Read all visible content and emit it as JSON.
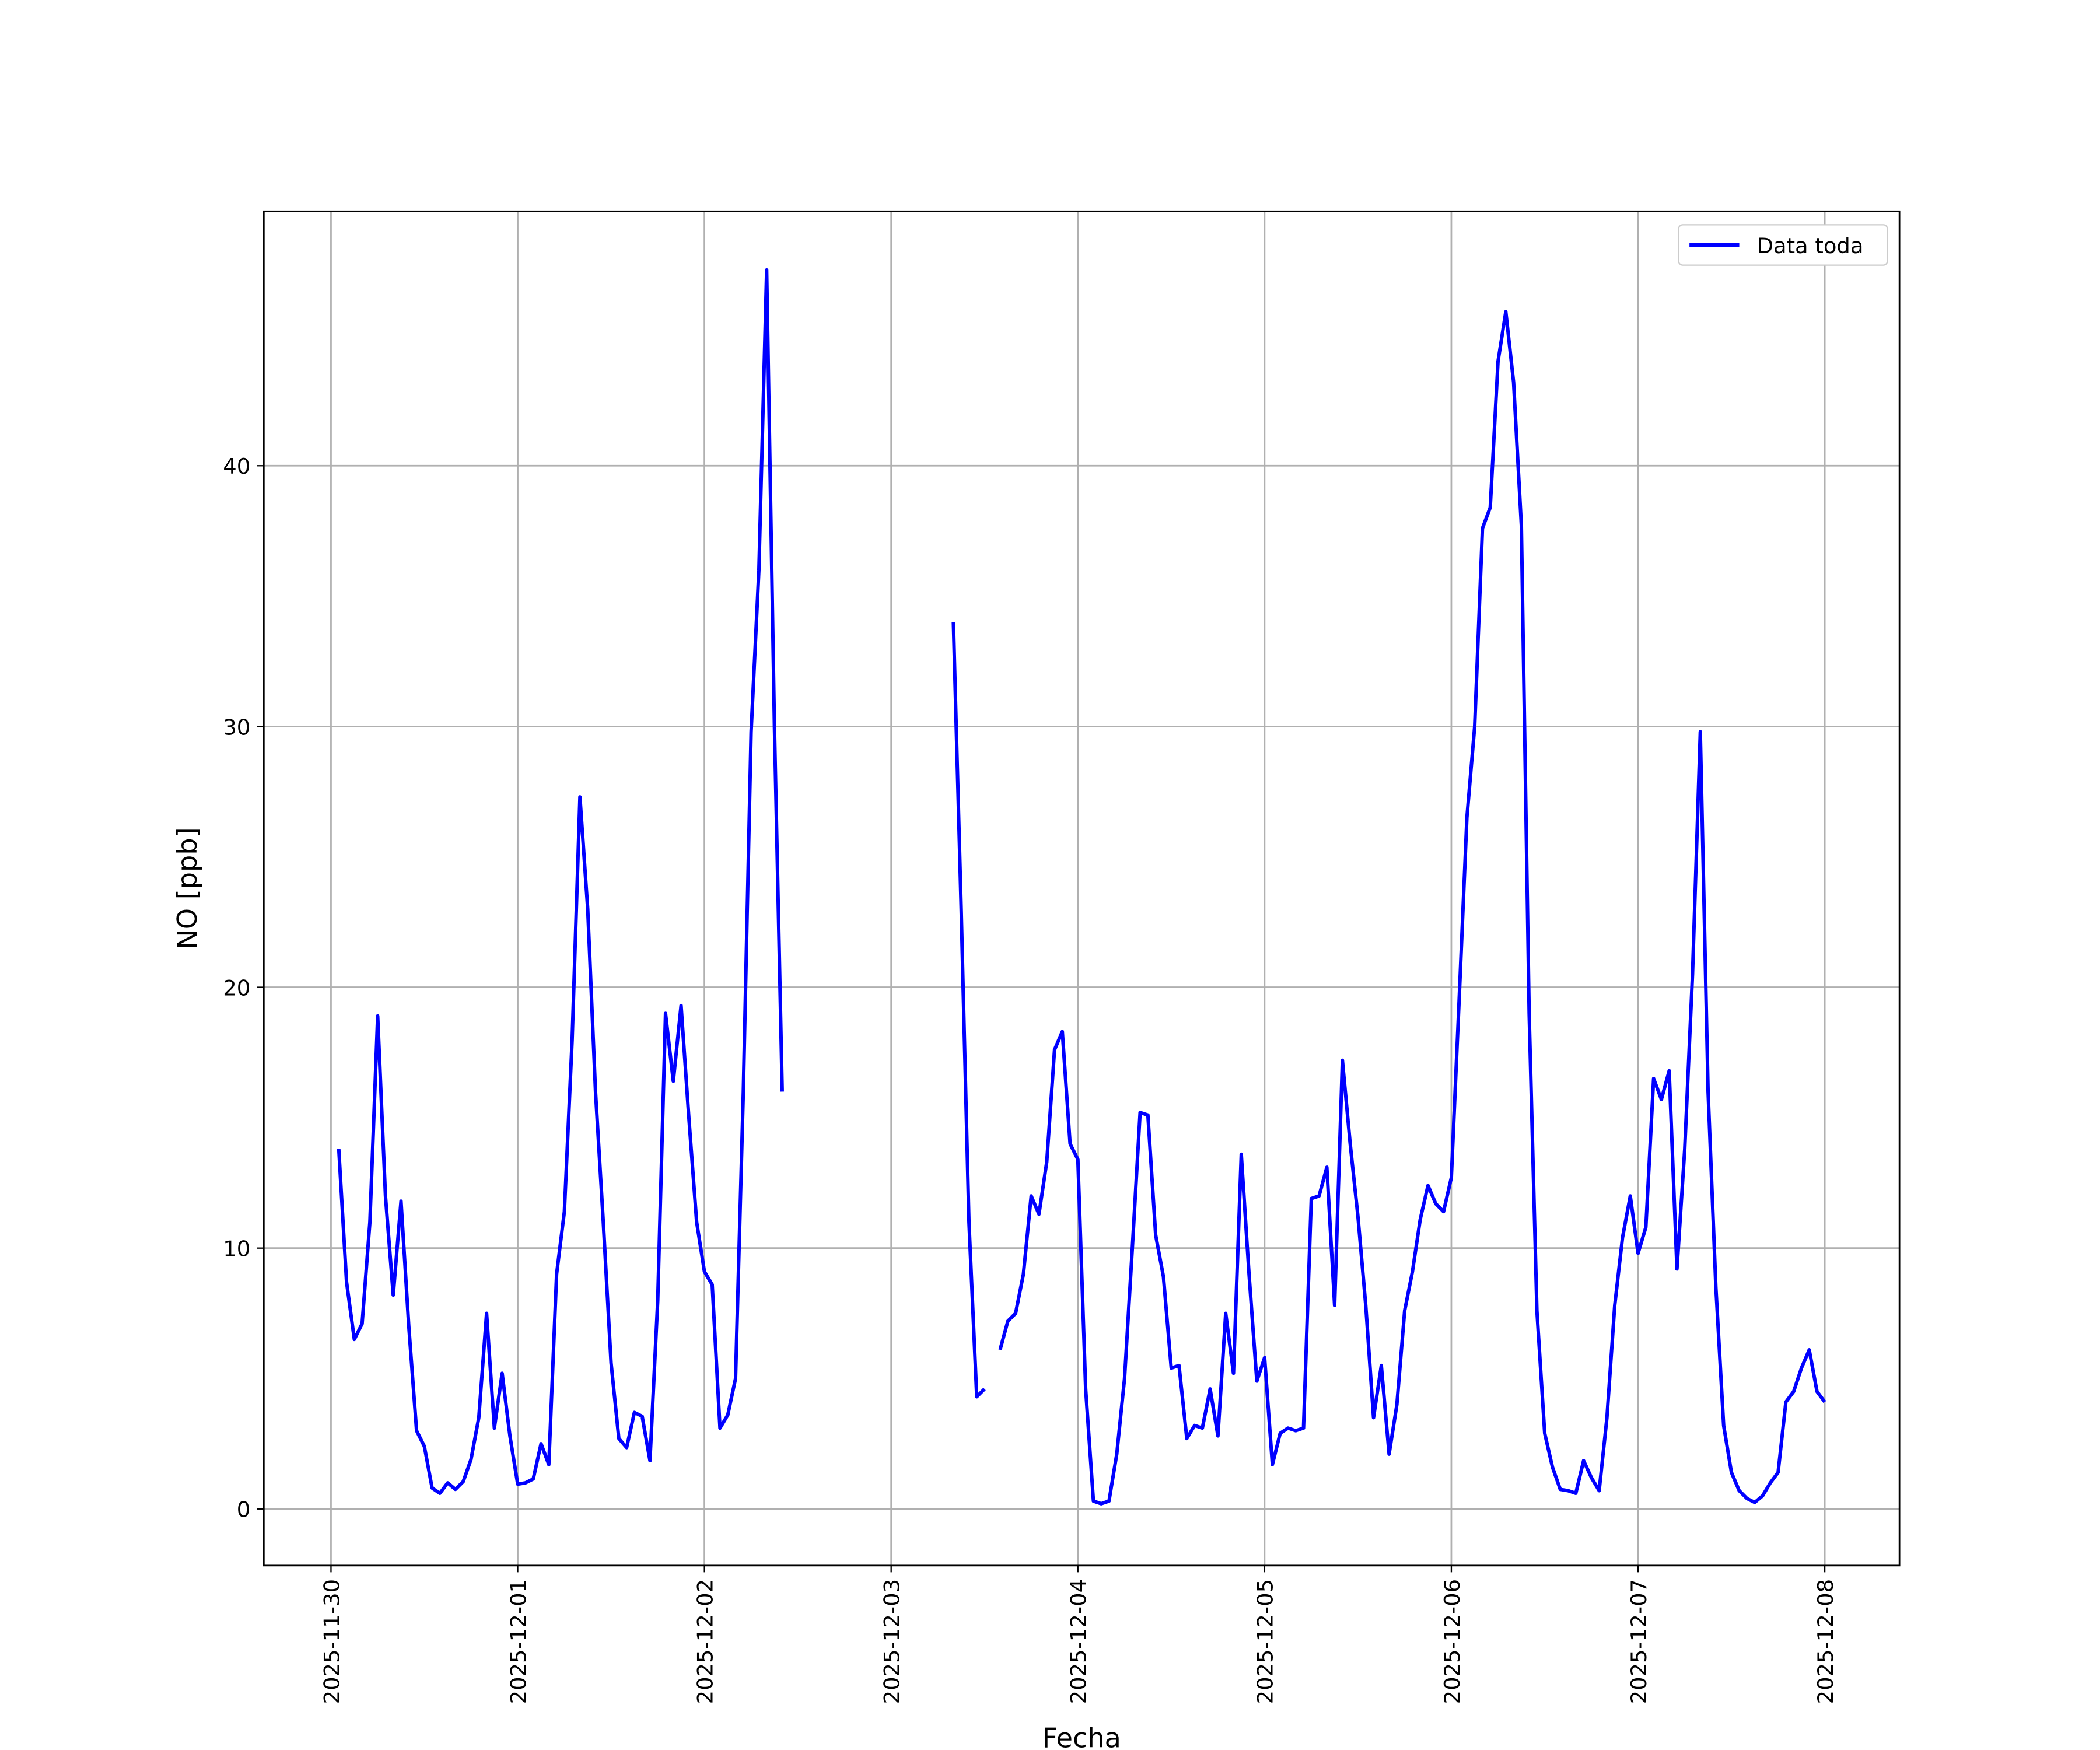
{
  "chart_data": {
    "type": "line",
    "x_label": "Fecha",
    "y_label": "NO [ppb]",
    "x": [
      "2025-11-30 01:00",
      "2025-11-30 02:00",
      "2025-11-30 03:00",
      "2025-11-30 04:00",
      "2025-11-30 05:00",
      "2025-11-30 06:00",
      "2025-11-30 07:00",
      "2025-11-30 08:00",
      "2025-11-30 09:00",
      "2025-11-30 10:00",
      "2025-11-30 11:00",
      "2025-11-30 12:00",
      "2025-11-30 13:00",
      "2025-11-30 14:00",
      "2025-11-30 15:00",
      "2025-11-30 16:00",
      "2025-11-30 17:00",
      "2025-11-30 18:00",
      "2025-11-30 19:00",
      "2025-11-30 20:00",
      "2025-11-30 21:00",
      "2025-11-30 22:00",
      "2025-11-30 23:00",
      "2025-12-01 00:00",
      "2025-12-01 01:00",
      "2025-12-01 02:00",
      "2025-12-01 03:00",
      "2025-12-01 04:00",
      "2025-12-01 05:00",
      "2025-12-01 06:00",
      "2025-12-01 07:00",
      "2025-12-01 08:00",
      "2025-12-01 09:00",
      "2025-12-01 10:00",
      "2025-12-01 11:00",
      "2025-12-01 12:00",
      "2025-12-01 13:00",
      "2025-12-01 14:00",
      "2025-12-01 15:00",
      "2025-12-01 16:00",
      "2025-12-01 17:00",
      "2025-12-01 18:00",
      "2025-12-01 19:00",
      "2025-12-01 20:00",
      "2025-12-01 21:00",
      "2025-12-01 22:00",
      "2025-12-01 23:00",
      "2025-12-02 00:00",
      "2025-12-02 01:00",
      "2025-12-02 02:00",
      "2025-12-02 03:00",
      "2025-12-02 04:00",
      "2025-12-02 05:00",
      "2025-12-02 06:00",
      "2025-12-02 07:00",
      "2025-12-02 08:00",
      "2025-12-02 09:00",
      "2025-12-02 10:00",
      "2025-12-02 11:00",
      "2025-12-03 08:00",
      "2025-12-03 09:00",
      "2025-12-03 10:00",
      "2025-12-03 11:00",
      "2025-12-03 12:00",
      "2025-12-03 13:00",
      "2025-12-03 14:00",
      "2025-12-03 15:00",
      "2025-12-03 16:00",
      "2025-12-03 17:00",
      "2025-12-03 18:00",
      "2025-12-03 19:00",
      "2025-12-03 20:00",
      "2025-12-03 21:00",
      "2025-12-03 22:00",
      "2025-12-03 23:00",
      "2025-12-04 00:00",
      "2025-12-04 01:00",
      "2025-12-04 02:00",
      "2025-12-04 03:00",
      "2025-12-04 04:00",
      "2025-12-04 05:00",
      "2025-12-04 06:00",
      "2025-12-04 07:00",
      "2025-12-04 08:00",
      "2025-12-04 09:00",
      "2025-12-04 10:00",
      "2025-12-04 11:00",
      "2025-12-04 12:00",
      "2025-12-04 13:00",
      "2025-12-04 14:00",
      "2025-12-04 15:00",
      "2025-12-04 16:00",
      "2025-12-04 17:00",
      "2025-12-04 18:00",
      "2025-12-04 19:00",
      "2025-12-04 20:00",
      "2025-12-04 21:00",
      "2025-12-04 22:00",
      "2025-12-04 23:00",
      "2025-12-05 00:00",
      "2025-12-05 01:00",
      "2025-12-05 02:00",
      "2025-12-05 03:00",
      "2025-12-05 04:00",
      "2025-12-05 05:00",
      "2025-12-05 06:00",
      "2025-12-05 07:00",
      "2025-12-05 08:00",
      "2025-12-05 09:00",
      "2025-12-05 10:00",
      "2025-12-05 11:00",
      "2025-12-05 12:00",
      "2025-12-05 13:00",
      "2025-12-05 14:00",
      "2025-12-05 15:00",
      "2025-12-05 16:00",
      "2025-12-05 17:00",
      "2025-12-05 18:00",
      "2025-12-05 19:00",
      "2025-12-05 20:00",
      "2025-12-05 21:00",
      "2025-12-05 22:00",
      "2025-12-05 23:00",
      "2025-12-06 00:00",
      "2025-12-06 01:00",
      "2025-12-06 02:00",
      "2025-12-06 03:00",
      "2025-12-06 04:00",
      "2025-12-06 05:00",
      "2025-12-06 06:00",
      "2025-12-06 07:00",
      "2025-12-06 08:00",
      "2025-12-06 09:00",
      "2025-12-06 10:00",
      "2025-12-06 11:00",
      "2025-12-06 12:00",
      "2025-12-06 13:00",
      "2025-12-06 14:00",
      "2025-12-06 15:00",
      "2025-12-06 16:00",
      "2025-12-06 17:00",
      "2025-12-06 18:00",
      "2025-12-06 19:00",
      "2025-12-06 20:00",
      "2025-12-06 21:00",
      "2025-12-06 22:00",
      "2025-12-06 23:00",
      "2025-12-07 00:00",
      "2025-12-07 01:00",
      "2025-12-07 02:00",
      "2025-12-07 03:00",
      "2025-12-07 04:00",
      "2025-12-07 05:00",
      "2025-12-07 06:00",
      "2025-12-07 07:00",
      "2025-12-07 08:00",
      "2025-12-07 09:00",
      "2025-12-07 10:00",
      "2025-12-07 11:00",
      "2025-12-07 12:00",
      "2025-12-07 13:00",
      "2025-12-07 14:00",
      "2025-12-07 15:00",
      "2025-12-07 16:00",
      "2025-12-07 17:00",
      "2025-12-07 18:00",
      "2025-12-07 19:00",
      "2025-12-07 20:00",
      "2025-12-07 21:00",
      "2025-12-07 22:00",
      "2025-12-07 23:00",
      "2025-12-08 00:00"
    ],
    "series": [
      {
        "name": "Data toda",
        "color": "#0000ff",
        "values": [
          13.8,
          8.7,
          6.5,
          7.1,
          11,
          18.9,
          12,
          8.2,
          11.8,
          7,
          3,
          2.4,
          0.8,
          0.6,
          1,
          0.75,
          1.05,
          1.9,
          3.5,
          7.5,
          3.1,
          5.2,
          2.8,
          0.95,
          1,
          1.15,
          2.5,
          1.7,
          9,
          11.4,
          18,
          27.3,
          23,
          16,
          11,
          5.6,
          2.7,
          2.35,
          3.7,
          3.55,
          1.85,
          8,
          19,
          16.4,
          19.3,
          15,
          11,
          9.1,
          8.6,
          3.1,
          3.6,
          5,
          16,
          29.8,
          36,
          47.5,
          30,
          16,
          null,
          34,
          23,
          11,
          4.3,
          4.6,
          null,
          6.1,
          7.2,
          7.5,
          9,
          12,
          11.3,
          13.3,
          17.6,
          18.3,
          14,
          13.4,
          4.6,
          0.3,
          0.2,
          0.3,
          2.1,
          5,
          10,
          15.2,
          15.1,
          10.5,
          8.9,
          5.4,
          5.5,
          2.7,
          3.2,
          3.1,
          4.6,
          2.8,
          7.5,
          5.2,
          13.6,
          9,
          4.9,
          5.8,
          1.7,
          2.9,
          3.1,
          3,
          3.1,
          11.9,
          12,
          13.1,
          7.8,
          17.2,
          14,
          11.2,
          7.8,
          3.5,
          5.5,
          2.1,
          4,
          7.6,
          9.1,
          11.1,
          12.4,
          11.7,
          11.4,
          12.7,
          19.5,
          26.5,
          30,
          37.6,
          38.4,
          44,
          45.9,
          43.2,
          37.7,
          19,
          7.6,
          2.9,
          1.6,
          0.75,
          0.7,
          0.6,
          1.85,
          1.2,
          0.7,
          3.5,
          7.8,
          10.4,
          12,
          9.8,
          10.8,
          16.5,
          15.7,
          16.8,
          9.2,
          13.8,
          20.5,
          29.8,
          16,
          8.5,
          3.2,
          1.4,
          0.7,
          0.4,
          0.25,
          0.5,
          1,
          1.4,
          4.1,
          4.5,
          5.4,
          6.1,
          4.5,
          4.1
        ]
      }
    ],
    "xlim": [
      "2025-11-29 15:22",
      "2025-12-08 09:36"
    ],
    "xticks": [
      "2025-11-30",
      "2025-12-01",
      "2025-12-02",
      "2025-12-03",
      "2025-12-04",
      "2025-12-05",
      "2025-12-06",
      "2025-12-07",
      "2025-12-08"
    ],
    "ylim": [
      -2.17,
      49.75
    ],
    "yticks": [
      0,
      10,
      20,
      30,
      40
    ],
    "grid": true,
    "legend": "upper right"
  }
}
